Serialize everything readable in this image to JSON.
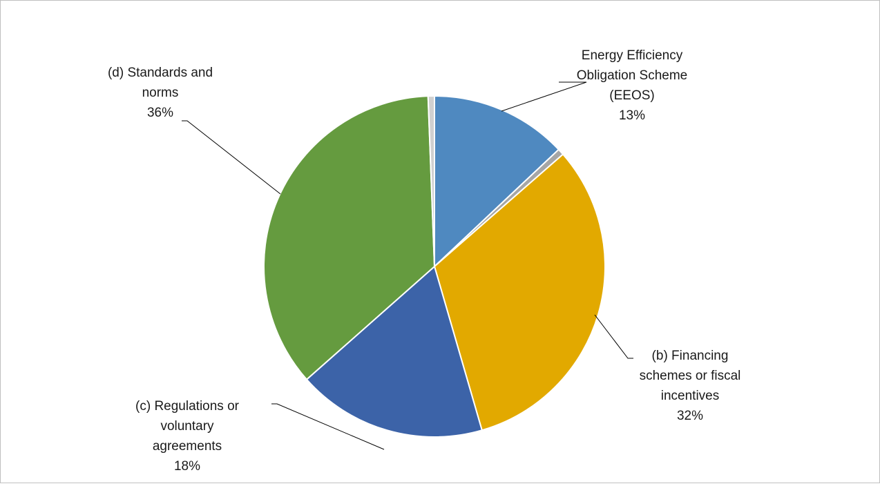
{
  "chart_data": {
    "type": "pie",
    "title": "",
    "slices": [
      {
        "label": [
          "Energy Efficiency",
          "Obligation Scheme",
          "(EEOS)"
        ],
        "value": 13,
        "percent_label": "13%",
        "color": "#4f89c0"
      },
      {
        "label": [],
        "value": 0.6,
        "percent_label": "",
        "color": "#a6a6a6"
      },
      {
        "label": [
          "(b) Financing",
          "schemes or fiscal",
          "incentives"
        ],
        "value": 32,
        "percent_label": "32%",
        "color": "#e2a900"
      },
      {
        "label": [
          "(c) Regulations or",
          "voluntary",
          "agreements"
        ],
        "value": 18,
        "percent_label": "18%",
        "color": "#3c63a8"
      },
      {
        "label": [
          "(d) Standards and",
          "norms"
        ],
        "value": 36,
        "percent_label": "36%",
        "color": "#659b3f"
      },
      {
        "label": [],
        "value": 0.6,
        "percent_label": "",
        "color": "#d0d0d0"
      }
    ]
  }
}
